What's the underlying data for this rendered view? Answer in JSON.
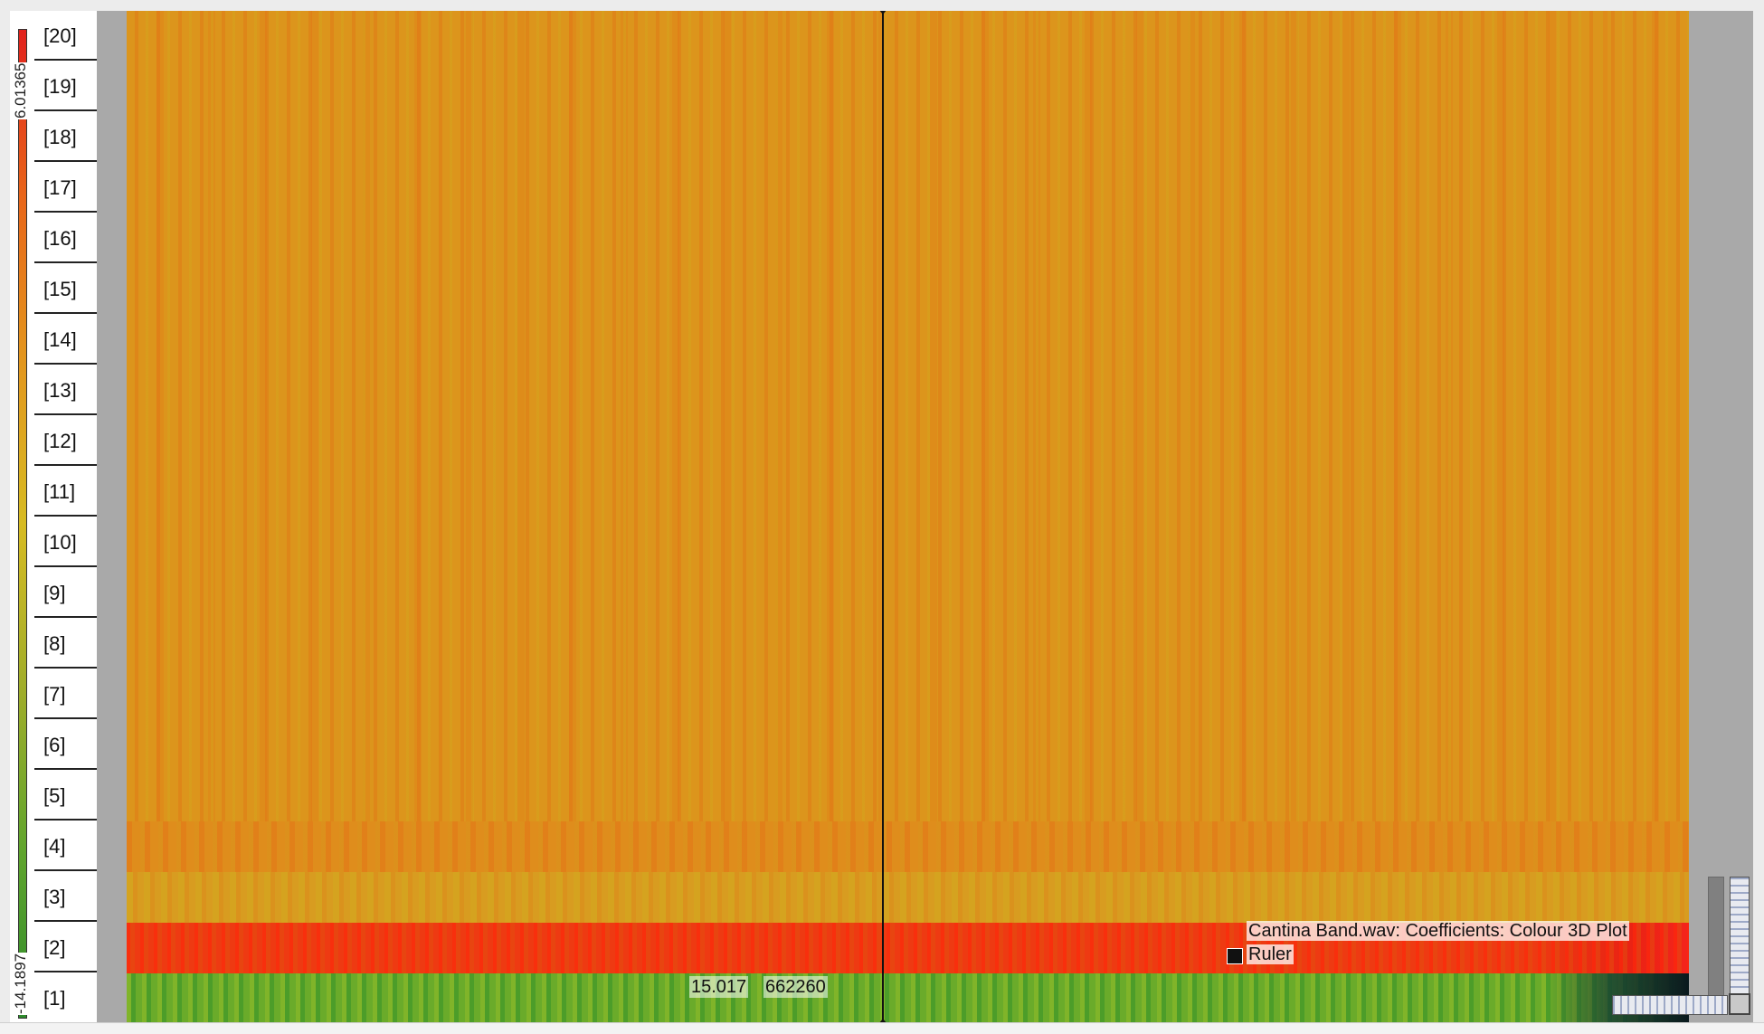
{
  "colour_scale": {
    "max_label": "6.01365",
    "min_label": "-14.1897",
    "colors": [
      "#e2211c",
      "#e8661a",
      "#e3951d",
      "#d7bb22",
      "#9fad2a",
      "#60a52d",
      "#2e8b2c"
    ]
  },
  "bins": [
    "[20]",
    "[19]",
    "[18]",
    "[17]",
    "[16]",
    "[15]",
    "[14]",
    "[13]",
    "[12]",
    "[11]",
    "[10]",
    "[9]",
    "[8]",
    "[7]",
    "[6]",
    "[5]",
    "[4]",
    "[3]",
    "[2]",
    "[1]"
  ],
  "playhead": {
    "time": "15.017",
    "value": "662260"
  },
  "legend": {
    "layer_name": "Cantina Band.wav: Coefficients: Colour 3D Plot",
    "ruler_label": "Ruler",
    "ruler_color": "#111111"
  },
  "icons": [
    "playhead-top-marker-icon",
    "playhead-bottom-marker-icon",
    "ruler-swatch-icon"
  ]
}
